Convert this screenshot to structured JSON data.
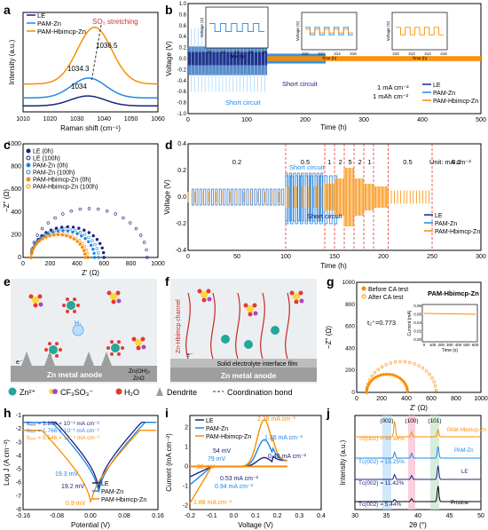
{
  "figure": {
    "panel_labels": [
      "a",
      "b",
      "c",
      "d",
      "e",
      "f",
      "g",
      "h",
      "i",
      "j"
    ],
    "colors": {
      "LE": "#1a237e",
      "PAM-Zn": "#1e88e5",
      "PAM-Hbimcp-Zn": "#fb8c00",
      "red": "#d32f2f"
    }
  },
  "panel_a": {
    "xlabel": "Raman shift (cm⁻¹)",
    "ylabel": "Intensity (a.u.)",
    "xticks": [
      "1010",
      "1020",
      "1030",
      "1040",
      "1050",
      "1060"
    ],
    "annotation": "SO₃ stretching",
    "peak_labels": [
      "1036.5",
      "1034.3",
      "1034"
    ],
    "legend": [
      "LE",
      "PAM-Zn",
      "PAM-Hbimcp-Zn"
    ]
  },
  "panel_b": {
    "xlabel": "Time (h)",
    "ylabel": "Voltage (V)",
    "xticks": [
      "0",
      "100",
      "200",
      "300",
      "400",
      "500"
    ],
    "yticks": [
      "-1.0",
      "-0.8",
      "-0.6",
      "-0.4",
      "-0.2",
      "0.0",
      "0.2",
      "0.4",
      "0.6",
      "0.8",
      "1.0"
    ],
    "annotations": [
      "Short circuit",
      "Short circuit",
      "1 mA cm⁻²",
      "1 mAh cm⁻²"
    ],
    "legend": [
      "LE",
      "PAM-Zn",
      "PAM-Hbimcp-Zn"
    ],
    "insets": [
      {
        "xticks": [
          "10",
          "12",
          "14",
          "16",
          "18"
        ],
        "xlabel": "Time (h)",
        "ylabel": "Voltage (V)"
      },
      {
        "xticks": [
          "210",
          "212",
          "214",
          "216"
        ],
        "xlabel": "Time (h)",
        "ylabel": "Voltage (V)"
      },
      {
        "xticks": [
          "410",
          "412",
          "414",
          "416"
        ],
        "xlabel": "Time (h)",
        "ylabel": "Voltage (V)"
      }
    ]
  },
  "panel_c": {
    "xlabel": "Z' (Ω)",
    "ylabel": "−Z'' (Ω)",
    "xticks": [
      "0",
      "200",
      "400",
      "600",
      "800",
      "1000"
    ],
    "yticks": [
      "0",
      "200",
      "400",
      "600",
      "800",
      "1000"
    ],
    "legend": [
      "LE (0h)",
      "LE (100h)",
      "PAM-Zn (0h)",
      "PAM-Zn (100h)",
      "PAM-Hbimcp-Zn (0h)",
      "PAM-Hbimcp-Zn (100h)"
    ]
  },
  "panel_d": {
    "xlabel": "Time (h)",
    "ylabel": "Voltage (V)",
    "xticks": [
      "0",
      "50",
      "100",
      "150",
      "200",
      "250",
      "300"
    ],
    "yticks": [
      "-0.4",
      "-0.2",
      "0.0",
      "0.2",
      "0.4"
    ],
    "rate_labels": [
      "0.2",
      "0.5",
      "1",
      "2",
      "5",
      "2",
      "1",
      "0.5",
      "0.2"
    ],
    "unit_label": "Unit: mA cm⁻²",
    "annotations": [
      "Short circuit",
      "Short circuit"
    ],
    "legend": [
      "LE",
      "PAM-Zn",
      "PAM-Hbimcp-Zn"
    ]
  },
  "panel_e": {
    "anode_label": "Zn metal anode",
    "side_labels": [
      "Zn(OH)₂",
      "ZnO"
    ],
    "h2_label": "H₂",
    "electron_label": "e⁻"
  },
  "panel_f": {
    "anode_label": "Zn metal anode",
    "channel_label": "Zn-Hbimcp channel",
    "film_label": "Solid electrolyte interface film",
    "electron_label": "e⁻"
  },
  "legend_row": {
    "items": [
      "Zn²⁺",
      "CF₃SO₃⁻",
      "H₂O",
      "Dendrite",
      "Coordination bond"
    ]
  },
  "panel_g": {
    "xlabel": "Z' (Ω)",
    "ylabel": "−Z'' (Ω)",
    "xticks": [
      "0",
      "200",
      "400",
      "600",
      "800",
      "1000"
    ],
    "yticks": [
      "0",
      "200",
      "400",
      "600",
      "800",
      "1000"
    ],
    "legend": [
      "Before CA test",
      "After CA test"
    ],
    "title": "PAM-Hbimcp-Zn",
    "tzn": "t₂⁺=0.773",
    "inset": {
      "xlabel": "Time (s)",
      "ylabel": "Current (mA)",
      "xticks": [
        "0",
        "100",
        "200",
        "300",
        "400",
        "500",
        "600"
      ],
      "yticks": [
        "0.00",
        "0.02",
        "0.04",
        "0.06",
        "0.08"
      ]
    }
  },
  "panel_h": {
    "xlabel": "Potential (V)",
    "ylabel": "Log J (A cm⁻²)",
    "xticks": [
      "-0.16",
      "-0.08",
      "0.00",
      "0.08",
      "0.16"
    ],
    "yticks": [
      "-8",
      "-7",
      "-6",
      "-5",
      "-4",
      "-3",
      "-2",
      "-1"
    ],
    "icorr": [
      "Iᴄₒᵣᵣ = 3.864 × 10⁻³ mA cm⁻²",
      "Iᴄₒᵣᵣ = 1.766 × 10⁻³ mA cm⁻²",
      "Iᴄₒᵣᵣ = 5.546 × 10⁻⁴ mA cm⁻²"
    ],
    "mv_labels": [
      "19.3 mV",
      "19.2 mV",
      "0.9 mV"
    ],
    "legend": [
      "LE",
      "PAM-Zn",
      "PAM-Hbimcp-Zn"
    ]
  },
  "panel_i": {
    "xlabel": "Voltage (V)",
    "ylabel": "Current (mA cm⁻²)",
    "xticks": [
      "-0.2",
      "-0.1",
      "0.0",
      "0.1",
      "0.2",
      "0.3",
      "0.4"
    ],
    "yticks": [
      "-2",
      "-1",
      "0",
      "1",
      "2"
    ],
    "labels": [
      "2.38 mA cm⁻²",
      "1.36 mA cm⁻²",
      "0.45 mA cm⁻²",
      "54 mV",
      "79 mV",
      "92 mV",
      "0.53 mA cm⁻²",
      "0.94 mA cm⁻²",
      "1.88 mA cm⁻²"
    ],
    "legend": [
      "LE",
      "PAM-Zn",
      "PAM-Hbimcp-Zn"
    ]
  },
  "panel_j": {
    "xlabel": "2θ (°)",
    "ylabel": "Intensity (a.u.)",
    "xticks": [
      "30",
      "35",
      "40",
      "45",
      "50"
    ],
    "peaks": [
      "(002)",
      "(100)",
      "(101)"
    ],
    "texture": [
      "Tᴄ(002) = 44.94%",
      "Tᴄ(002) = 15.25%",
      "Tᴄ(002) = 11.42%",
      "Tᴄ(002) = 5.44%"
    ],
    "traces": [
      "PAM-Hbimcp-Zn",
      "PAM-Zn",
      "LE",
      "Pristine"
    ]
  },
  "chart_data": [
    {
      "panel": "a",
      "type": "line",
      "xlim": [
        1010,
        1060
      ],
      "series": [
        {
          "name": "LE",
          "x": [
            1010,
            1020,
            1028,
            1034,
            1040,
            1048,
            1060
          ],
          "y": [
            0.06,
            0.08,
            0.12,
            0.16,
            0.12,
            0.08,
            0.06
          ]
        },
        {
          "name": "PAM-Zn",
          "x": [
            1010,
            1020,
            1028,
            1034.3,
            1040,
            1048,
            1060
          ],
          "y": [
            0.14,
            0.18,
            0.26,
            0.34,
            0.27,
            0.18,
            0.14
          ]
        },
        {
          "name": "PAM-Hbimcp-Zn",
          "x": [
            1010,
            1020,
            1028,
            1036.5,
            1044,
            1052,
            1060
          ],
          "y": [
            0.28,
            0.36,
            0.56,
            0.85,
            0.58,
            0.38,
            0.3
          ]
        }
      ]
    },
    {
      "panel": "b",
      "type": "line",
      "xlim": [
        0,
        500
      ],
      "ylim": [
        -1.0,
        1.0
      ],
      "series": [
        {
          "name": "LE",
          "x": [
            0,
            135
          ],
          "y": [
            0.2,
            -0.25
          ],
          "note": "short circuit ~140 h"
        },
        {
          "name": "PAM-Zn",
          "x": [
            0,
            230
          ],
          "y": [
            0.08,
            -0.08
          ],
          "note": "short circuit ~235 h"
        },
        {
          "name": "PAM-Hbimcp-Zn",
          "x": [
            0,
            500
          ],
          "y": [
            0.04,
            -0.04
          ]
        }
      ]
    },
    {
      "panel": "c",
      "type": "scatter",
      "xlim": [
        0,
        1000
      ],
      "ylim": [
        0,
        1000
      ],
      "series": [
        {
          "name": "LE (0h)",
          "diameter": 540
        },
        {
          "name": "LE (100h)",
          "diameter": 860
        },
        {
          "name": "PAM-Zn (0h)",
          "diameter": 470
        },
        {
          "name": "PAM-Zn (100h)",
          "diameter": 500
        },
        {
          "name": "PAM-Hbimcp-Zn (0h)",
          "diameter": 400
        },
        {
          "name": "PAM-Hbimcp-Zn (100h)",
          "diameter": 420
        }
      ]
    },
    {
      "panel": "d",
      "type": "line",
      "xlim": [
        0,
        300
      ],
      "ylim": [
        -0.4,
        0.4
      ],
      "rate_boundaries": [
        100,
        140,
        150,
        160,
        170,
        180,
        190,
        205,
        250
      ],
      "rates": [
        0.2,
        0.5,
        1,
        2,
        5,
        2,
        1,
        0.5,
        0.2
      ],
      "series": [
        {
          "name": "LE",
          "amplitude": [
            0.08,
            0.18,
            0.22
          ]
        },
        {
          "name": "PAM-Zn",
          "amplitude": [
            0.06,
            0.15,
            0.2
          ]
        },
        {
          "name": "PAM-Hbimcp-Zn",
          "amplitude": [
            0.04,
            0.08,
            0.12,
            0.16,
            0.2,
            0.16,
            0.12,
            0.08,
            0.05
          ]
        }
      ]
    },
    {
      "panel": "g",
      "type": "scatter",
      "xlim": [
        0,
        1000
      ],
      "ylim": [
        0,
        1000
      ],
      "series": [
        {
          "name": "Before CA test",
          "diameter": 330
        },
        {
          "name": "After CA test",
          "diameter": 560
        }
      ],
      "inset": {
        "x": [
          0,
          600
        ],
        "y": [
          0.048,
          0.047
        ]
      }
    },
    {
      "panel": "h",
      "type": "line",
      "xlim": [
        -0.16,
        0.16
      ],
      "ylim": [
        -8,
        -1
      ],
      "series": [
        {
          "name": "LE",
          "Ecorr": 0.0193,
          "min": -6.5
        },
        {
          "name": "PAM-Zn",
          "Ecorr": 0.0192,
          "min": -6.8
        },
        {
          "name": "PAM-Hbimcp-Zn",
          "Ecorr": 0.0009,
          "min": -7.6
        }
      ]
    },
    {
      "panel": "i",
      "type": "line",
      "xlim": [
        -0.2,
        0.4
      ],
      "ylim": [
        -2.2,
        2.6
      ],
      "series": [
        {
          "name": "LE",
          "peak": 0.45,
          "trough": -0.53
        },
        {
          "name": "PAM-Zn",
          "peak": 1.36,
          "trough": -0.94
        },
        {
          "name": "PAM-Hbimcp-Zn",
          "peak": 2.38,
          "trough": -1.88
        }
      ]
    },
    {
      "panel": "j",
      "type": "line",
      "xlim": [
        30,
        50
      ],
      "series": [
        {
          "name": "PAM-Hbimcp-Zn",
          "peaks": {
            "36.3": 0.8,
            "39.0": 0.25,
            "43.2": 0.35
          }
        },
        {
          "name": "PAM-Zn",
          "peaks": {
            "36.3": 0.3,
            "39.0": 0.25,
            "43.2": 0.6
          }
        },
        {
          "name": "LE",
          "peaks": {
            "36.3": 0.25,
            "39.0": 0.2,
            "43.2": 0.7
          }
        },
        {
          "name": "Pristine",
          "peaks": {
            "36.3": 0.1,
            "39.0": 0.15,
            "43.2": 0.8
          }
        }
      ]
    }
  ]
}
